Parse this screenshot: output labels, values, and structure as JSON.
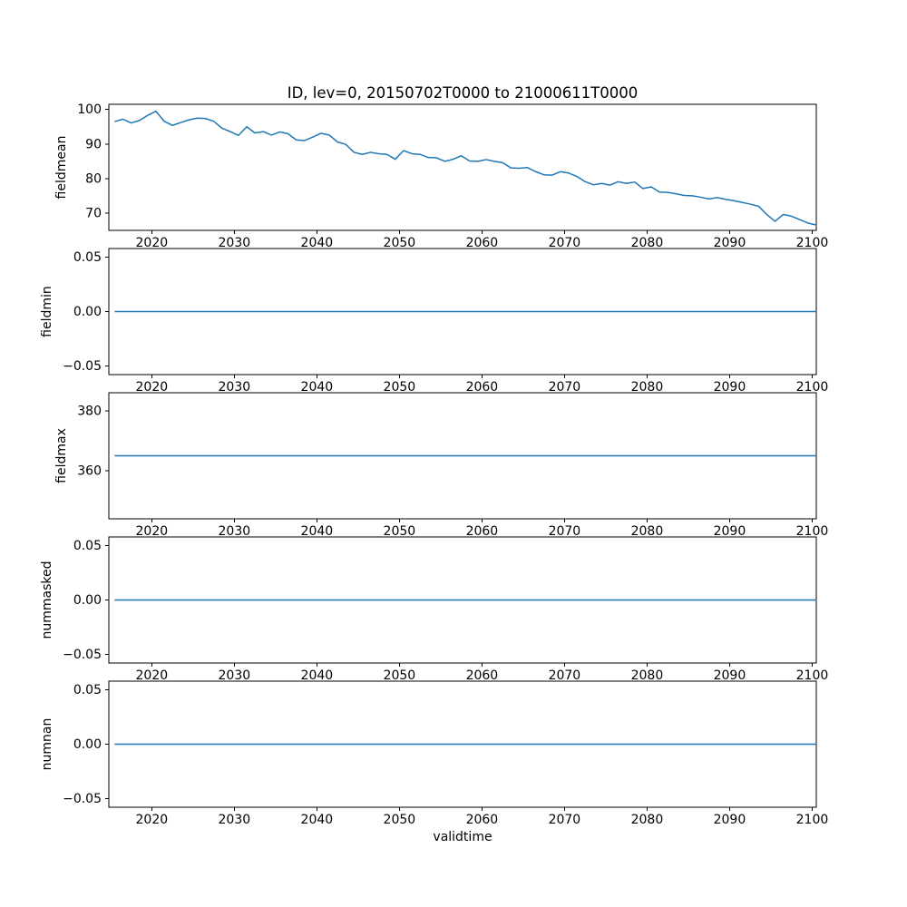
{
  "figure": {
    "title": "ID, lev=0, 20150702T0000 to 21000611T0000",
    "xlabel": "validtime"
  },
  "chart_data": {
    "type": "line",
    "title": "ID, lev=0, 20150702T0000 to 21000611T0000",
    "xlabel": "validtime",
    "line_color": "#1f77b4",
    "legend": "none",
    "grid": false,
    "x_range": [
      2014.8,
      2100.5
    ],
    "xticks": [
      2020,
      2030,
      2040,
      2050,
      2060,
      2070,
      2080,
      2090,
      2100
    ],
    "xtick_labels": [
      "2020",
      "2030",
      "2040",
      "2050",
      "2060",
      "2070",
      "2080",
      "2090",
      "2100"
    ],
    "subplots": [
      {
        "ylabel": "fieldmean",
        "ylim": [
          65,
          101.5
        ],
        "yticks": [
          70,
          80,
          90,
          100
        ],
        "ytick_labels": [
          "70",
          "80",
          "90",
          "100"
        ],
        "x": [
          2015.5,
          2016.5,
          2017.5,
          2018.5,
          2019.5,
          2020.5,
          2021.5,
          2022.5,
          2023.5,
          2024.5,
          2025.5,
          2026.5,
          2027.5,
          2028.5,
          2029.5,
          2030.5,
          2031.5,
          2032.5,
          2033.5,
          2034.5,
          2035.5,
          2036.5,
          2037.5,
          2038.5,
          2039.5,
          2040.5,
          2041.5,
          2042.5,
          2043.5,
          2044.5,
          2045.5,
          2046.5,
          2047.5,
          2048.5,
          2049.5,
          2050.5,
          2051.5,
          2052.5,
          2053.5,
          2054.5,
          2055.5,
          2056.5,
          2057.5,
          2058.5,
          2059.5,
          2060.5,
          2061.5,
          2062.5,
          2063.5,
          2064.5,
          2065.5,
          2066.5,
          2067.5,
          2068.5,
          2069.5,
          2070.5,
          2071.5,
          2072.5,
          2073.5,
          2074.5,
          2075.5,
          2076.5,
          2077.5,
          2078.5,
          2079.5,
          2080.5,
          2081.5,
          2082.5,
          2083.5,
          2084.5,
          2085.5,
          2086.5,
          2087.5,
          2088.5,
          2089.5,
          2090.5,
          2091.5,
          2092.5,
          2093.5,
          2094.5,
          2095.5,
          2096.5,
          2097.5,
          2098.5,
          2099.5,
          2100.4
        ],
        "values": [
          96.5,
          97.2,
          96.1,
          96.8,
          98.3,
          99.5,
          96.6,
          95.4,
          96.2,
          97.0,
          97.5,
          97.4,
          96.6,
          94.6,
          93.6,
          92.5,
          95.0,
          93.2,
          93.6,
          92.6,
          93.5,
          93.0,
          91.2,
          91.0,
          92.0,
          93.1,
          92.6,
          90.6,
          89.9,
          87.6,
          87.0,
          87.6,
          87.2,
          87.0,
          85.6,
          88.1,
          87.2,
          87.0,
          86.1,
          86.0,
          85.0,
          85.6,
          86.6,
          85.1,
          85.0,
          85.5,
          85.0,
          84.6,
          83.1,
          83.0,
          83.2,
          82.0,
          81.1,
          81.0,
          82.0,
          81.6,
          80.6,
          79.1,
          78.2,
          78.6,
          78.1,
          79.1,
          78.6,
          79.0,
          77.1,
          77.6,
          76.1,
          76.0,
          75.6,
          75.1,
          75.0,
          74.6,
          74.1,
          74.5,
          74.0,
          73.6,
          73.1,
          72.6,
          72.0,
          69.6,
          67.6,
          69.6,
          69.1,
          68.1,
          67.1,
          66.6
        ]
      },
      {
        "ylabel": "fieldmin",
        "ylim": [
          -0.058,
          0.058
        ],
        "yticks": [
          -0.05,
          0,
          0.05
        ],
        "ytick_labels": [
          "−0.05",
          "0.00",
          "0.05"
        ],
        "x": [
          2015.5,
          2100.4
        ],
        "values": [
          0,
          0
        ]
      },
      {
        "ylabel": "fieldmax",
        "ylim": [
          344,
          386
        ],
        "yticks": [
          360,
          380
        ],
        "ytick_labels": [
          "360",
          "380"
        ],
        "x": [
          2015.5,
          2100.4
        ],
        "values": [
          365,
          365
        ]
      },
      {
        "ylabel": "nummasked",
        "ylim": [
          -0.058,
          0.058
        ],
        "yticks": [
          -0.05,
          0,
          0.05
        ],
        "ytick_labels": [
          "−0.05",
          "0.00",
          "0.05"
        ],
        "x": [
          2015.5,
          2100.4
        ],
        "values": [
          0,
          0
        ]
      },
      {
        "ylabel": "numnan",
        "ylim": [
          -0.058,
          0.058
        ],
        "yticks": [
          -0.05,
          0,
          0.05
        ],
        "ytick_labels": [
          "−0.05",
          "0.00",
          "0.05"
        ],
        "x": [
          2015.5,
          2100.4
        ],
        "values": [
          0,
          0
        ]
      }
    ]
  }
}
